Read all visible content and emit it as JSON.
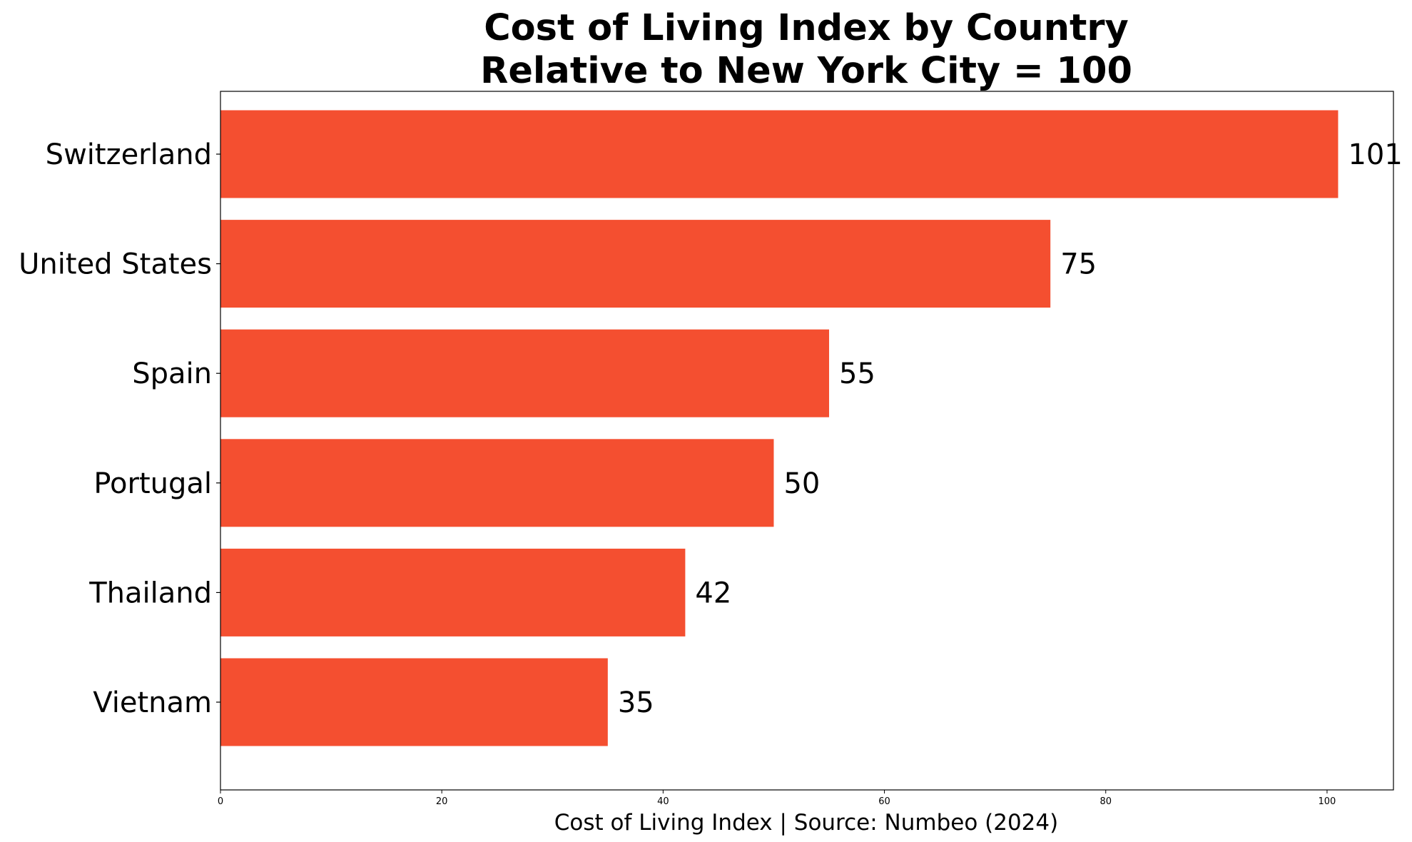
{
  "chart_data": {
    "type": "bar",
    "orientation": "horizontal",
    "title_lines": [
      "Cost of Living Index by Country",
      "Relative to New York City = 100"
    ],
    "categories": [
      "Switzerland",
      "United States",
      "Spain",
      "Portugal",
      "Thailand",
      "Vietnam"
    ],
    "values": [
      101,
      75,
      55,
      50,
      42,
      35
    ],
    "value_labels": [
      "101",
      "75",
      "55",
      "50",
      "42",
      "35"
    ],
    "xlabel": "Cost of Living Index | Source: Numbeo (2024)",
    "ylabel": "",
    "xlim": [
      0,
      106
    ],
    "xticks": [
      0,
      20,
      40,
      60,
      80,
      100
    ],
    "xtick_labels": [
      "0",
      "20",
      "40",
      "60",
      "80",
      "100"
    ],
    "bar_color": "#f44f30",
    "grid": false,
    "legend": "none"
  }
}
